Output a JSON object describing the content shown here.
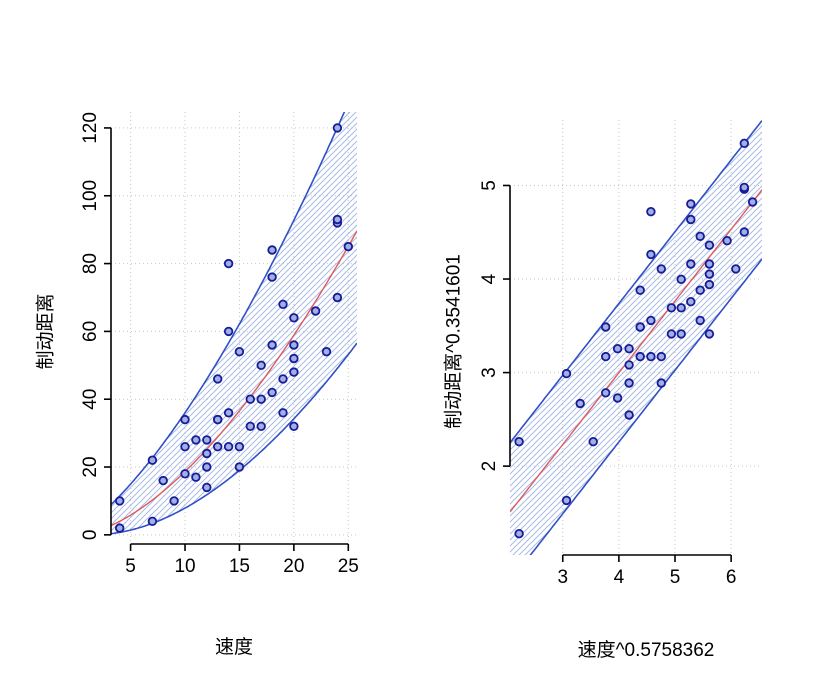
{
  "colors": {
    "background": "#ffffff",
    "point_fill": "#9db1e2",
    "point_stroke": "#1a1a99",
    "band_line": "#3050c8",
    "band_hatch": "#a9bce4",
    "fit_line": "#e05a5a",
    "grid": "#c6c6c6",
    "axis": "#000000",
    "text": "#000000"
  },
  "model": {
    "power_x": 0.5758362,
    "power_y": 0.3541601,
    "intercept": -0.07,
    "slope": 0.767,
    "band_halfwidth": 0.74
  },
  "chart_data": [
    {
      "type": "scatter",
      "title": "",
      "xlabel": "速度",
      "ylabel": "制动距离",
      "xlim": [
        3.2,
        25.8
      ],
      "ylim": [
        -2.7,
        124.7
      ],
      "xticks": [
        5,
        10,
        15,
        20,
        25
      ],
      "yticks": [
        0,
        20,
        40,
        60,
        80,
        100,
        120
      ],
      "grid": "dotted",
      "legend": "none",
      "fit_space": "original",
      "x": [
        4,
        4,
        7,
        7,
        8,
        9,
        10,
        10,
        10,
        11,
        11,
        12,
        12,
        12,
        12,
        13,
        13,
        13,
        13,
        14,
        14,
        14,
        14,
        15,
        15,
        15,
        16,
        16,
        17,
        17,
        17,
        18,
        18,
        18,
        18,
        19,
        19,
        19,
        20,
        20,
        20,
        20,
        20,
        22,
        23,
        24,
        24,
        24,
        24,
        25
      ],
      "y": [
        2,
        10,
        4,
        22,
        16,
        10,
        18,
        26,
        34,
        17,
        28,
        14,
        20,
        24,
        28,
        26,
        34,
        34,
        46,
        26,
        36,
        60,
        80,
        20,
        26,
        54,
        32,
        40,
        32,
        40,
        50,
        42,
        56,
        76,
        84,
        36,
        46,
        68,
        32,
        48,
        52,
        56,
        64,
        66,
        54,
        70,
        92,
        93,
        120,
        85
      ]
    },
    {
      "type": "scatter",
      "title": "",
      "xlabel": "速度^0.5758362",
      "ylabel": "制动距离^0.3541601",
      "xlim": [
        2.06,
        6.55
      ],
      "ylim": [
        1.05,
        5.7
      ],
      "xticks": [
        3,
        4,
        5,
        6
      ],
      "yticks": [
        2,
        3,
        4,
        5
      ],
      "grid": "dotted",
      "legend": "none",
      "fit_space": "transformed",
      "x": [
        2.222,
        2.222,
        3.066,
        3.066,
        3.311,
        3.543,
        3.765,
        3.765,
        3.765,
        3.978,
        3.978,
        4.182,
        4.182,
        4.182,
        4.182,
        4.379,
        4.379,
        4.379,
        4.379,
        4.57,
        4.57,
        4.57,
        4.57,
        4.756,
        4.756,
        4.756,
        4.936,
        4.936,
        5.111,
        5.111,
        5.111,
        5.282,
        5.282,
        5.282,
        5.282,
        5.449,
        5.449,
        5.449,
        5.613,
        5.613,
        5.613,
        5.613,
        5.613,
        5.929,
        6.083,
        6.234,
        6.234,
        6.234,
        6.234,
        6.382
      ],
      "y": [
        1.278,
        2.261,
        1.634,
        2.989,
        2.67,
        2.261,
        2.784,
        3.171,
        3.487,
        2.728,
        3.255,
        2.547,
        2.889,
        3.082,
        3.255,
        3.171,
        3.487,
        3.487,
        3.881,
        3.171,
        3.558,
        4.263,
        4.72,
        2.889,
        3.171,
        4.108,
        3.413,
        3.693,
        3.413,
        3.693,
        3.997,
        3.758,
        4.161,
        4.636,
        4.803,
        3.558,
        3.881,
        4.457,
        3.413,
        3.94,
        4.053,
        4.161,
        4.362,
        4.41,
        4.108,
        4.503,
        4.96,
        4.98,
        5.451,
        4.823
      ]
    }
  ]
}
